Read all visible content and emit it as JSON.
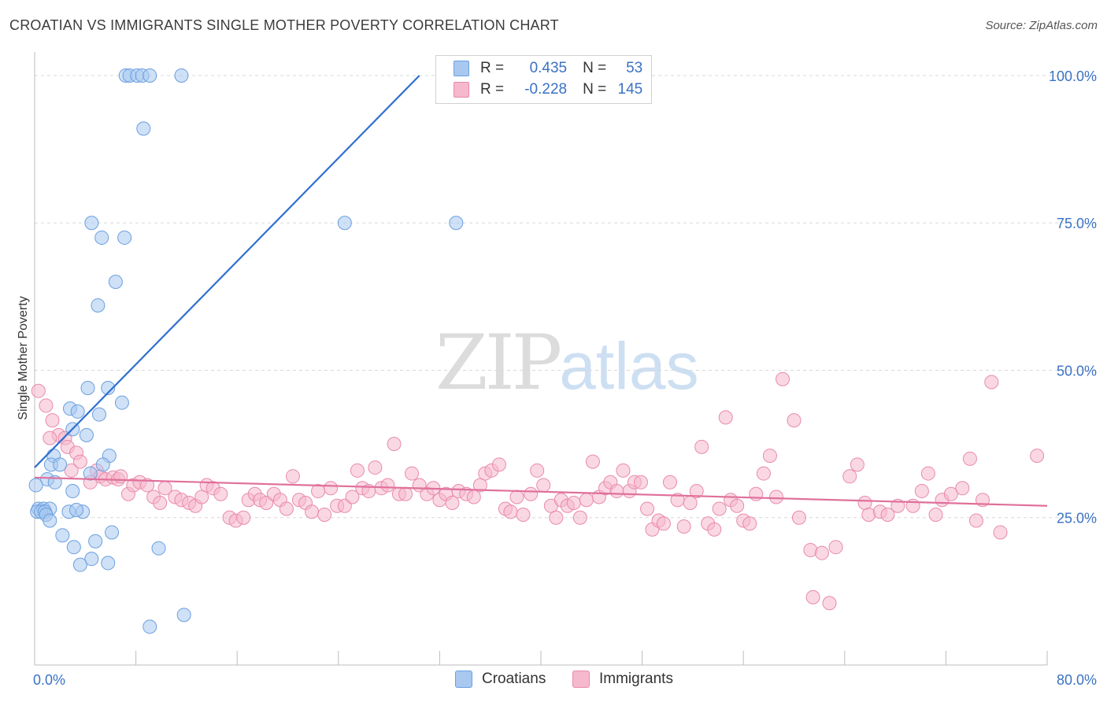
{
  "title": "CROATIAN VS IMMIGRANTS SINGLE MOTHER POVERTY CORRELATION CHART",
  "source": "Source: ZipAtlas.com",
  "watermark": {
    "zip": "ZIP",
    "atlas": "atlas"
  },
  "colors": {
    "blue_fill": "#a8c8f0",
    "blue_stroke": "#6a9fe0",
    "blue_line": "#2f6fd0",
    "pink_fill": "#f5b8cc",
    "pink_stroke": "#e98aac",
    "pink_line": "#e0709a",
    "tick_label": "#3a72c4",
    "grid": "#d9d9d9"
  },
  "legend": {
    "rows": [
      {
        "r_label": "R =",
        "r_value": "0.435",
        "n_label": "N =",
        "n_value": "53",
        "color": "blue"
      },
      {
        "r_label": "R =",
        "r_value": "-0.228",
        "n_label": "N =",
        "n_value": "145",
        "color": "pink"
      }
    ]
  },
  "bottom_legend": {
    "croatians": "Croatians",
    "immigrants": "Immigrants"
  },
  "chart_data": {
    "type": "scatter",
    "xlabel": "",
    "ylabel": "Single Mother Poverty",
    "xlim": [
      0,
      80
    ],
    "ylim": [
      0,
      104
    ],
    "x_tick_labels": [
      {
        "value": 0,
        "label": "0.0%"
      },
      {
        "value": 80,
        "label": "80.0%"
      }
    ],
    "y_tick_labels": [
      {
        "value": 25,
        "label": "25.0%"
      },
      {
        "value": 50,
        "label": "50.0%"
      },
      {
        "value": 75,
        "label": "75.0%"
      },
      {
        "value": 100,
        "label": "100.0%"
      }
    ],
    "grid": true,
    "series": [
      {
        "name": "Croatians",
        "color": "blue",
        "trendline": {
          "x": [
            0,
            30.4
          ],
          "y": [
            33.5,
            100
          ]
        },
        "points": [
          [
            7.2,
            100
          ],
          [
            7.5,
            100
          ],
          [
            8.1,
            100
          ],
          [
            8.5,
            100
          ],
          [
            9.1,
            100
          ],
          [
            11.6,
            100
          ],
          [
            8.6,
            91
          ],
          [
            4.5,
            75
          ],
          [
            24.5,
            75
          ],
          [
            33.3,
            75
          ],
          [
            5.3,
            72.5
          ],
          [
            7.1,
            72.5
          ],
          [
            6.4,
            65
          ],
          [
            5.0,
            61
          ],
          [
            4.2,
            47
          ],
          [
            5.8,
            47
          ],
          [
            2.8,
            43.5
          ],
          [
            6.9,
            44.5
          ],
          [
            3.4,
            43
          ],
          [
            5.1,
            42.5
          ],
          [
            3.0,
            40
          ],
          [
            4.1,
            39
          ],
          [
            1.5,
            35.5
          ],
          [
            5.9,
            35.5
          ],
          [
            1.3,
            34
          ],
          [
            2.0,
            34
          ],
          [
            5.4,
            34
          ],
          [
            4.4,
            32.5
          ],
          [
            1.0,
            31.5
          ],
          [
            1.6,
            31
          ],
          [
            3.0,
            29.5
          ],
          [
            0.1,
            30.5
          ],
          [
            0.3,
            26.5
          ],
          [
            0.7,
            26.5
          ],
          [
            1.2,
            26.5
          ],
          [
            0.2,
            26
          ],
          [
            0.5,
            26
          ],
          [
            0.8,
            26
          ],
          [
            0.9,
            25.5
          ],
          [
            2.7,
            26
          ],
          [
            3.8,
            26
          ],
          [
            1.2,
            24.5
          ],
          [
            6.1,
            22.5
          ],
          [
            2.2,
            22
          ],
          [
            4.8,
            21
          ],
          [
            3.1,
            20
          ],
          [
            9.8,
            19.8
          ],
          [
            4.5,
            18
          ],
          [
            3.6,
            17
          ],
          [
            5.8,
            17.3
          ],
          [
            11.8,
            8.5
          ],
          [
            9.1,
            6.5
          ],
          [
            3.3,
            26.3
          ]
        ]
      },
      {
        "name": "Immigrants",
        "color": "pink",
        "trendline": {
          "x": [
            0,
            80
          ],
          "y": [
            31.8,
            27.0
          ]
        },
        "points": [
          [
            0.3,
            46.5
          ],
          [
            0.9,
            44
          ],
          [
            1.4,
            41.5
          ],
          [
            1.9,
            39
          ],
          [
            2.4,
            38.5
          ],
          [
            2.6,
            37
          ],
          [
            3.3,
            36
          ],
          [
            3.6,
            34.5
          ],
          [
            4.9,
            33
          ],
          [
            5.2,
            32
          ],
          [
            5.6,
            31.5
          ],
          [
            6.2,
            31.8
          ],
          [
            6.6,
            31.5
          ],
          [
            7.4,
            29
          ],
          [
            7.8,
            30.5
          ],
          [
            8.3,
            31
          ],
          [
            8.9,
            30.5
          ],
          [
            9.4,
            28.5
          ],
          [
            9.9,
            27.5
          ],
          [
            10.3,
            30
          ],
          [
            11.1,
            28.5
          ],
          [
            11.6,
            28
          ],
          [
            12.2,
            27.5
          ],
          [
            12.7,
            27
          ],
          [
            13.2,
            28.5
          ],
          [
            13.6,
            30.5
          ],
          [
            14.1,
            30
          ],
          [
            14.7,
            29
          ],
          [
            15.4,
            25
          ],
          [
            15.9,
            24.5
          ],
          [
            16.5,
            25
          ],
          [
            16.9,
            28
          ],
          [
            17.4,
            29
          ],
          [
            17.8,
            28
          ],
          [
            18.3,
            27.5
          ],
          [
            18.9,
            29
          ],
          [
            19.4,
            28
          ],
          [
            19.9,
            26.5
          ],
          [
            20.4,
            32
          ],
          [
            20.9,
            28
          ],
          [
            21.4,
            27.5
          ],
          [
            21.9,
            26
          ],
          [
            22.4,
            29.5
          ],
          [
            22.9,
            25.5
          ],
          [
            23.4,
            30
          ],
          [
            23.9,
            27
          ],
          [
            24.5,
            27
          ],
          [
            25.1,
            28.5
          ],
          [
            25.5,
            33
          ],
          [
            25.9,
            30
          ],
          [
            26.4,
            29.5
          ],
          [
            26.9,
            33.5
          ],
          [
            27.4,
            30
          ],
          [
            27.9,
            30.5
          ],
          [
            28.4,
            37.5
          ],
          [
            28.8,
            29
          ],
          [
            29.3,
            29
          ],
          [
            29.8,
            32.5
          ],
          [
            30.4,
            30.5
          ],
          [
            31.0,
            29
          ],
          [
            31.5,
            30
          ],
          [
            32.0,
            28
          ],
          [
            32.5,
            29
          ],
          [
            33.0,
            27.5
          ],
          [
            33.5,
            29.5
          ],
          [
            34.1,
            29
          ],
          [
            34.7,
            28.5
          ],
          [
            35.2,
            30.5
          ],
          [
            35.6,
            32.5
          ],
          [
            36.1,
            33
          ],
          [
            36.7,
            34
          ],
          [
            37.2,
            26.5
          ],
          [
            37.6,
            26
          ],
          [
            38.1,
            28.5
          ],
          [
            38.6,
            25.5
          ],
          [
            39.2,
            29
          ],
          [
            39.7,
            33
          ],
          [
            40.2,
            30.5
          ],
          [
            40.8,
            27
          ],
          [
            41.2,
            25
          ],
          [
            41.6,
            28
          ],
          [
            42.1,
            27
          ],
          [
            42.6,
            27.5
          ],
          [
            43.1,
            25
          ],
          [
            43.6,
            28
          ],
          [
            44.1,
            34.5
          ],
          [
            44.6,
            28.5
          ],
          [
            45.1,
            30
          ],
          [
            45.5,
            31
          ],
          [
            46.0,
            29.5
          ],
          [
            46.5,
            33
          ],
          [
            47.0,
            29.5
          ],
          [
            47.4,
            31
          ],
          [
            47.9,
            31
          ],
          [
            48.4,
            26.5
          ],
          [
            48.8,
            23
          ],
          [
            49.3,
            24.5
          ],
          [
            49.7,
            24
          ],
          [
            50.2,
            31
          ],
          [
            50.8,
            28
          ],
          [
            51.3,
            23.5
          ],
          [
            51.8,
            27.5
          ],
          [
            52.3,
            29.5
          ],
          [
            52.7,
            37
          ],
          [
            53.2,
            24
          ],
          [
            53.7,
            23
          ],
          [
            54.1,
            26.5
          ],
          [
            54.6,
            42
          ],
          [
            55.0,
            28
          ],
          [
            55.5,
            27
          ],
          [
            56.0,
            24.5
          ],
          [
            56.5,
            24
          ],
          [
            57.0,
            29
          ],
          [
            57.6,
            32.5
          ],
          [
            58.1,
            35.5
          ],
          [
            58.6,
            28.5
          ],
          [
            59.1,
            48.5
          ],
          [
            60.0,
            41.5
          ],
          [
            60.4,
            25
          ],
          [
            61.3,
            19.5
          ],
          [
            62.2,
            19
          ],
          [
            63.3,
            20
          ],
          [
            64.4,
            32
          ],
          [
            65.0,
            34
          ],
          [
            65.6,
            27.5
          ],
          [
            65.9,
            25.5
          ],
          [
            66.8,
            26
          ],
          [
            67.4,
            25.5
          ],
          [
            68.2,
            27
          ],
          [
            69.4,
            27
          ],
          [
            70.1,
            29.5
          ],
          [
            70.6,
            32.5
          ],
          [
            71.2,
            25.5
          ],
          [
            71.7,
            28
          ],
          [
            72.4,
            29
          ],
          [
            73.3,
            30
          ],
          [
            73.9,
            35
          ],
          [
            74.4,
            24.5
          ],
          [
            74.9,
            28
          ],
          [
            75.6,
            48
          ],
          [
            76.3,
            22.5
          ],
          [
            79.2,
            35.5
          ],
          [
            61.5,
            11.5
          ],
          [
            62.8,
            10.5
          ],
          [
            1.2,
            38.5
          ],
          [
            2.9,
            33
          ],
          [
            4.4,
            31
          ],
          [
            6.8,
            32
          ]
        ]
      }
    ]
  }
}
